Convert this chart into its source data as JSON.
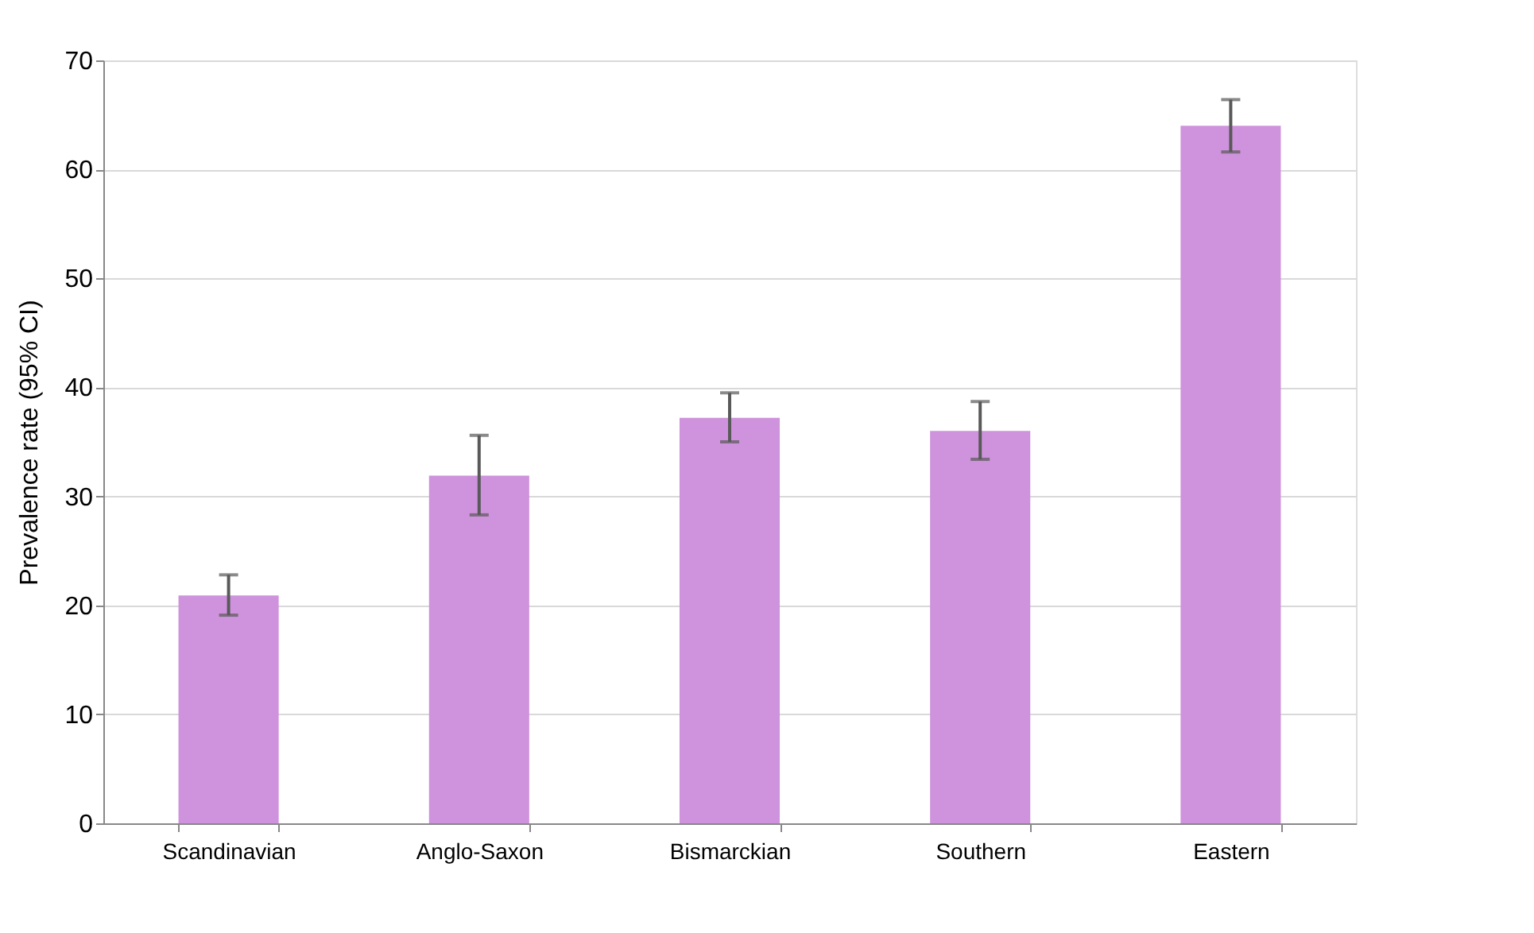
{
  "chart_data": {
    "type": "bar",
    "ylabel": "Prevalence rate (95% CI)",
    "categories": [
      "Scandinavian",
      "Anglo-Saxon",
      "Bismarckian",
      "Southern",
      "Eastern"
    ],
    "values": [
      20.9,
      31.9,
      37.2,
      36.0,
      64.0
    ],
    "errors": [
      [
        19.1,
        22.8
      ],
      [
        28.3,
        35.6
      ],
      [
        35.0,
        39.5
      ],
      [
        33.4,
        38.7
      ],
      [
        61.6,
        66.4
      ]
    ],
    "color": "#ce93dc",
    "ylim": [
      0,
      70
    ],
    "yticks": [
      0,
      10,
      20,
      30,
      40,
      50,
      60,
      70
    ],
    "grid": "y"
  }
}
